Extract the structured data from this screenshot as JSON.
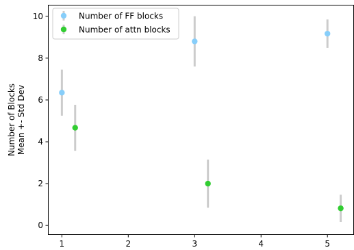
{
  "chart_data": {
    "type": "scatter",
    "title": "",
    "xlabel": "",
    "ylabel_line1": "Number of Blocks",
    "ylabel_line2": "Mean +- Std Dev",
    "xlim": [
      0.79,
      5.4
    ],
    "ylim": [
      -0.42,
      10.55
    ],
    "xticks": [
      1,
      2,
      3,
      4,
      5
    ],
    "yticks": [
      0,
      2,
      4,
      6,
      8,
      10
    ],
    "grid": false,
    "legend_position": "top-left",
    "errorbar_color": "#cccccc",
    "series": [
      {
        "name": "Number of FF blocks",
        "color": "#87cefa",
        "points": [
          {
            "x": 1.0,
            "y": 6.35,
            "err": 1.1
          },
          {
            "x": 3.0,
            "y": 8.8,
            "err": 1.2
          },
          {
            "x": 5.0,
            "y": 9.17,
            "err": 0.68
          }
        ]
      },
      {
        "name": "Number of attn blocks",
        "color": "#32cd32",
        "points": [
          {
            "x": 1.2,
            "y": 4.67,
            "err": 1.1
          },
          {
            "x": 3.2,
            "y": 2.0,
            "err": 1.15
          },
          {
            "x": 5.2,
            "y": 0.82,
            "err": 0.65
          }
        ]
      }
    ]
  }
}
